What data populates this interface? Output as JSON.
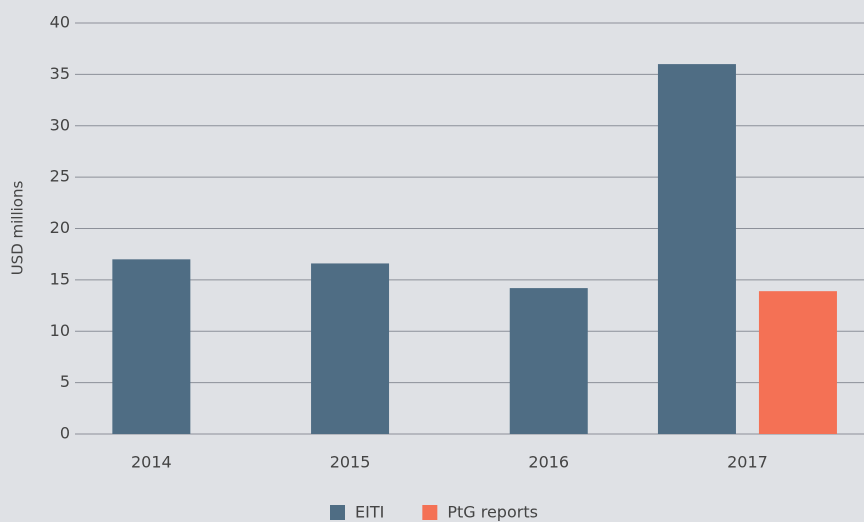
{
  "chart_data": {
    "type": "bar",
    "y_label": "USD millions",
    "categories": [
      "2014",
      "2015",
      "2016",
      "2017"
    ],
    "series": [
      {
        "name": "EITI",
        "color": "#4f6d84",
        "values": [
          17,
          16.6,
          14.2,
          36
        ]
      },
      {
        "name": "PtG reports",
        "color": "#f47155",
        "values": [
          null,
          null,
          null,
          13.9
        ]
      }
    ],
    "ylim": [
      0,
      40
    ],
    "yticks": [
      0,
      5,
      10,
      15,
      20,
      25,
      30,
      35,
      40
    ],
    "grid": true,
    "legend": "bottom"
  }
}
